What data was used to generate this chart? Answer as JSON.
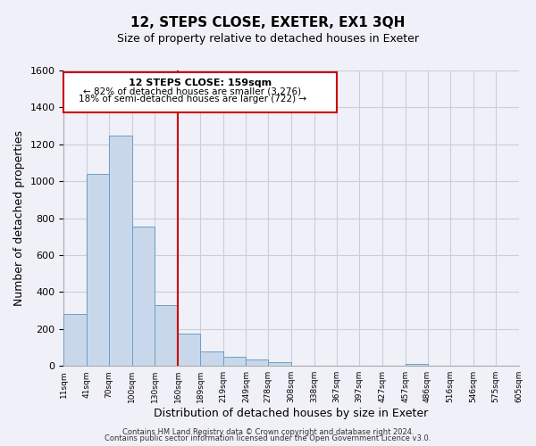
{
  "title": "12, STEPS CLOSE, EXETER, EX1 3QH",
  "subtitle": "Size of property relative to detached houses in Exeter",
  "xlabel": "Distribution of detached houses by size in Exeter",
  "ylabel": "Number of detached properties",
  "bar_edges": [
    11,
    41,
    70,
    100,
    130,
    160,
    189,
    219,
    249,
    278,
    308,
    338,
    367,
    397,
    427,
    457,
    486,
    516,
    546,
    575,
    605
  ],
  "bar_heights": [
    280,
    1040,
    1245,
    755,
    330,
    175,
    80,
    50,
    35,
    20,
    0,
    0,
    0,
    0,
    0,
    10,
    0,
    0,
    0,
    0
  ],
  "tick_labels": [
    "11sqm",
    "41sqm",
    "70sqm",
    "100sqm",
    "130sqm",
    "160sqm",
    "189sqm",
    "219sqm",
    "249sqm",
    "278sqm",
    "308sqm",
    "338sqm",
    "367sqm",
    "397sqm",
    "427sqm",
    "457sqm",
    "486sqm",
    "516sqm",
    "546sqm",
    "575sqm",
    "605sqm"
  ],
  "bar_facecolor": "#cddaе8",
  "bar_edgecolor": "#6b9ec8",
  "vline_x": 160,
  "vline_color": "#cc0000",
  "box_text_line1": "12 STEPS CLOSE: 159sqm",
  "box_text_line2": "← 82% of detached houses are smaller (3,276)",
  "box_text_line3": "18% of semi-detached houses are larger (722) →",
  "box_color": "#cc0000",
  "ylim": [
    0,
    1600
  ],
  "yticks": [
    0,
    200,
    400,
    600,
    800,
    1000,
    1200,
    1400,
    1600
  ],
  "footnote1": "Contains HM Land Registry data © Crown copyright and database right 2024.",
  "footnote2": "Contains public sector information licensed under the Open Government Licence v3.0.",
  "bg_color": "#f0f0f8",
  "grid_color": "#ccccdd"
}
